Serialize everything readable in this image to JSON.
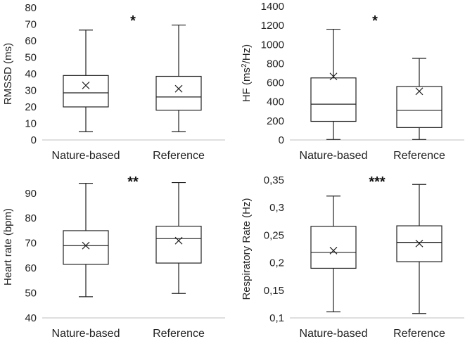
{
  "chart_data": [
    {
      "type": "box",
      "title": "",
      "ylabel": "RMSSD (ms)",
      "ylim": [
        0,
        80
      ],
      "yticks": [
        0,
        10,
        20,
        30,
        40,
        50,
        60,
        70,
        80
      ],
      "ytick_labels": [
        "0",
        "10",
        "20",
        "30",
        "40",
        "50",
        "60",
        "70",
        "80"
      ],
      "categories": [
        "Nature-based",
        "Reference"
      ],
      "significance": "*",
      "boxes": [
        {
          "category": "Nature-based",
          "min": 5,
          "q1": 20,
          "median": 28.5,
          "q3": 39,
          "max": 66.5,
          "mean": 33
        },
        {
          "category": "Reference",
          "min": 5,
          "q1": 18,
          "median": 26,
          "q3": 38.5,
          "max": 69.5,
          "mean": 31
        }
      ]
    },
    {
      "type": "box",
      "title": "",
      "ylabel_prefix": "HF (ms",
      "ylabel_sup": "2",
      "ylabel_suffix": "/Hz)",
      "ylim": [
        0,
        1400
      ],
      "yticks": [
        0,
        200,
        400,
        600,
        800,
        1000,
        1200,
        1400
      ],
      "ytick_labels": [
        "0",
        "200",
        "400",
        "600",
        "800",
        "1000",
        "1200",
        "1400"
      ],
      "categories": [
        "Nature-based",
        "Reference"
      ],
      "significance": "*",
      "boxes": [
        {
          "category": "Nature-based",
          "min": 5,
          "q1": 195,
          "median": 375,
          "q3": 650,
          "max": 1160,
          "mean": 665
        },
        {
          "category": "Reference",
          "min": 5,
          "q1": 130,
          "median": 310,
          "q3": 560,
          "max": 855,
          "mean": 510
        }
      ]
    },
    {
      "type": "box",
      "title": "",
      "ylabel": "Heart rate (bpm)",
      "ylim": [
        40,
        97
      ],
      "yticks": [
        40,
        50,
        60,
        70,
        80,
        90
      ],
      "ytick_labels": [
        "40",
        "50",
        "60",
        "70",
        "80",
        "90"
      ],
      "categories": [
        "Nature-based",
        "Reference"
      ],
      "significance": "**",
      "boxes": [
        {
          "category": "Nature-based",
          "min": 48.5,
          "q1": 61.5,
          "median": 69,
          "q3": 75,
          "max": 94,
          "mean": 69
        },
        {
          "category": "Reference",
          "min": 49.8,
          "q1": 62,
          "median": 71.8,
          "q3": 76.8,
          "max": 94.3,
          "mean": 71
        }
      ]
    },
    {
      "type": "box",
      "title": "",
      "ylabel": "Respiratory Rate (Hz)",
      "ylim": [
        0.1,
        0.35
      ],
      "yticks": [
        0.1,
        0.15,
        0.2,
        0.25,
        0.3,
        0.35
      ],
      "ytick_labels": [
        "0,1",
        "0,15",
        "0,2",
        "0,25",
        "0,3",
        "0,35"
      ],
      "categories": [
        "Nature-based",
        "Reference"
      ],
      "significance": "***",
      "boxes": [
        {
          "category": "Nature-based",
          "min": 0.111,
          "q1": 0.19,
          "median": 0.219,
          "q3": 0.266,
          "max": 0.321,
          "mean": 0.222
        },
        {
          "category": "Reference",
          "min": 0.108,
          "q1": 0.202,
          "median": 0.237,
          "q3": 0.267,
          "max": 0.342,
          "mean": 0.235
        }
      ]
    }
  ]
}
